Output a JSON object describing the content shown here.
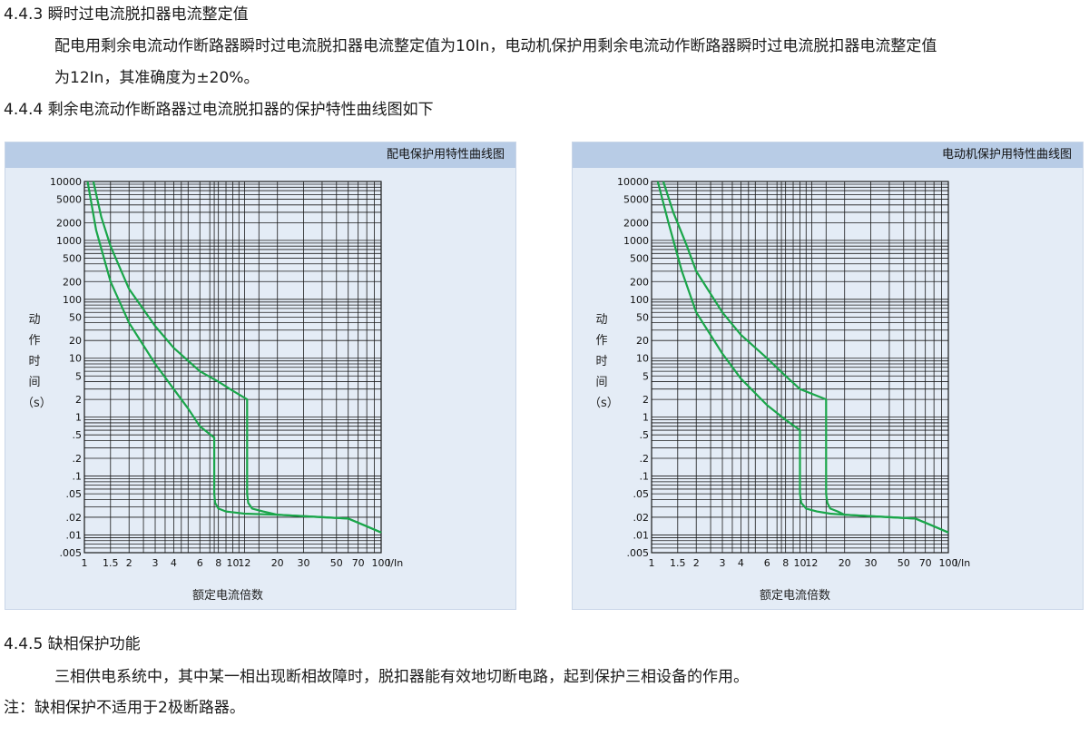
{
  "doc": {
    "h443": "4.4.3 瞬时过电流脱扣器电流整定值",
    "p443_line1": "配电用剩余电流动作断路器瞬时过电流脱扣器电流整定值为10In，电动机保护用剩余电流动作断路器瞬时过电流脱扣器电流整定值",
    "p443_line2": "为12In，其准确度为±20%。",
    "h444": "4.4.4 剩余电流动作断路器过电流脱扣器的保护特性曲线图如下",
    "h445": "4.4.5 缺相保护功能",
    "p445": "三相供电系统中，其中某一相出现断相故障时，脱扣器能有效地切断电路，起到保护三相设备的作用。",
    "note": "注：缺相保护不适用于2极断路器。"
  },
  "chart_data": [
    {
      "type": "line",
      "title": "配电保护用特性曲线图",
      "xlabel": "额定电流倍数",
      "xunit": "I/In",
      "ylabel": [
        "动",
        "作",
        "时",
        "间",
        "（s）"
      ],
      "xscale": "log",
      "yscale": "log",
      "xlim": [
        1,
        100
      ],
      "ylim": [
        0.005,
        10000
      ],
      "xticks": [
        "1",
        "1.5",
        "2",
        "3",
        "4",
        "6",
        "8",
        "10",
        "12",
        "20",
        "30",
        "50",
        "70",
        "100"
      ],
      "yticks": [
        "10000",
        "5000",
        "2000",
        "1000",
        "500",
        "200",
        "100",
        "50",
        "20",
        "10",
        "5",
        "2",
        "1",
        ".5",
        ".2",
        ".1",
        ".05",
        ".02",
        ".01",
        ".005"
      ],
      "grid": true,
      "line_color": "#1aa64a",
      "series": [
        {
          "x": [
            1.05,
            1.2,
            1.5,
            2,
            3,
            4,
            5,
            6,
            7.5,
            7.5,
            7.6,
            8,
            9,
            12,
            20,
            40,
            60,
            80,
            100
          ],
          "y": [
            10000,
            1500,
            200,
            40,
            8,
            3,
            1.4,
            0.7,
            0.45,
            0.05,
            0.035,
            0.028,
            0.025,
            0.023,
            0.022,
            0.02,
            0.019,
            0.014,
            0.011
          ]
        },
        {
          "x": [
            1.15,
            1.3,
            1.5,
            2,
            3,
            4,
            6,
            8,
            10,
            12.5,
            12.5,
            12.7,
            13.5,
            16,
            20,
            40,
            60,
            80,
            100
          ],
          "y": [
            10000,
            2500,
            800,
            150,
            35,
            15,
            6,
            4,
            2.8,
            2,
            0.05,
            0.035,
            0.028,
            0.025,
            0.022,
            0.02,
            0.019,
            0.014,
            0.011
          ]
        }
      ]
    },
    {
      "type": "line",
      "title": "电动机保护用特性曲线图",
      "xlabel": "额定电流倍数",
      "xunit": "I/In",
      "ylabel": [
        "动",
        "作",
        "时",
        "间",
        "（s）"
      ],
      "xscale": "log",
      "yscale": "log",
      "xlim": [
        1,
        100
      ],
      "ylim": [
        0.005,
        10000
      ],
      "xticks": [
        "1",
        "1.5",
        "2",
        "3",
        "4",
        "6",
        "8",
        "10",
        "12",
        "20",
        "30",
        "50",
        "70",
        "100"
      ],
      "yticks": [
        "10000",
        "5000",
        "2000",
        "1000",
        "500",
        "200",
        "100",
        "50",
        "20",
        "10",
        "5",
        "2",
        "1",
        ".5",
        ".2",
        ".1",
        ".05",
        ".02",
        ".01",
        ".005"
      ],
      "grid": true,
      "line_color": "#1aa64a",
      "series": [
        {
          "x": [
            1.1,
            1.3,
            1.6,
            2,
            3,
            4,
            6,
            8,
            10,
            10,
            10.2,
            11,
            13,
            16,
            20,
            40,
            60,
            80,
            100
          ],
          "y": [
            10000,
            2000,
            300,
            60,
            12,
            4.5,
            1.6,
            0.9,
            0.6,
            0.05,
            0.035,
            0.028,
            0.025,
            0.023,
            0.022,
            0.02,
            0.019,
            0.014,
            0.011
          ]
        },
        {
          "x": [
            1.2,
            1.4,
            1.7,
            2,
            3,
            4,
            6,
            8,
            10,
            15,
            15,
            15.3,
            16,
            18,
            20,
            40,
            60,
            80,
            100
          ],
          "y": [
            10000,
            3000,
            900,
            300,
            60,
            25,
            10,
            5,
            3,
            2,
            0.05,
            0.035,
            0.028,
            0.025,
            0.022,
            0.02,
            0.019,
            0.014,
            0.011
          ]
        }
      ]
    }
  ]
}
